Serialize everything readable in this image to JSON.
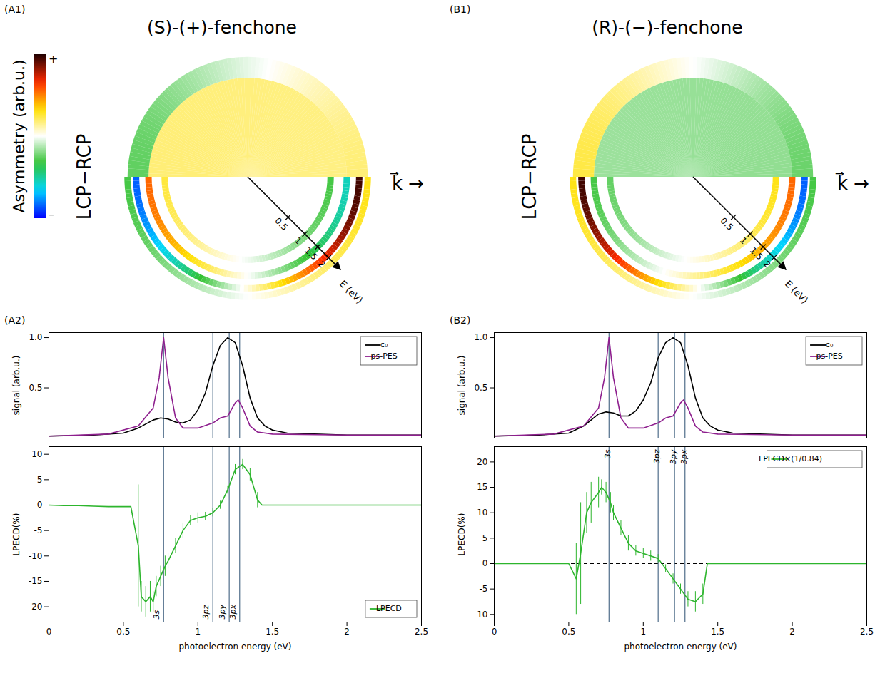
{
  "chart_data": [
    {
      "type": "image",
      "panel": "(A1)",
      "title": "(S)-(+)-fenchone",
      "ylabel": "LCP−RCP",
      "direction_label": "k⃗ →",
      "colorbar": {
        "label": "Asymmetry (arb.u.)",
        "range": [
          -1,
          1
        ],
        "ticks": [
          {
            "value": 1,
            "label": "+"
          },
          {
            "value": -1,
            "label": "–"
          }
        ]
      },
      "energy_axis": {
        "label": "E (eV)",
        "lim": [
          0,
          2.3
        ],
        "ticks": [
          0.5,
          1,
          1.5,
          2
        ]
      },
      "upper_regions": [
        {
          "e": [
            0,
            1.5
          ],
          "asymmetry_left": 0.22,
          "asymmetry_right": 0.2
        },
        {
          "e": [
            1.5,
            2.2
          ],
          "asymmetry_left": -0.32,
          "asymmetry_right": 0.22
        }
      ],
      "rings": [
        {
          "e": 1.05,
          "asymmetry_left": 0.25,
          "asymmetry_right": -0.3
        },
        {
          "e": 1.5,
          "asymmetry_left": 0.55,
          "asymmetry_right": -0.55
        },
        {
          "e": 1.9,
          "asymmetry_left": -0.85,
          "asymmetry_right": 0.95
        },
        {
          "e": 2.2,
          "asymmetry_left": -0.3,
          "asymmetry_right": 0.3
        }
      ]
    },
    {
      "type": "image",
      "panel": "(B1)",
      "title": "(R)-(−)-fenchone",
      "ylabel": "LCP−RCP",
      "direction_label": "k⃗ →",
      "energy_axis": {
        "label": "E (eV)",
        "lim": [
          0,
          2.3
        ],
        "ticks": [
          0.5,
          1,
          1.5,
          2
        ]
      },
      "upper_regions": [
        {
          "e": [
            0,
            1.5
          ],
          "asymmetry_left": -0.2,
          "asymmetry_right": -0.22
        },
        {
          "e": [
            1.5,
            2.2
          ],
          "asymmetry_left": 0.3,
          "asymmetry_right": -0.3
        }
      ],
      "rings": [
        {
          "e": 1.05,
          "asymmetry_left": -0.25,
          "asymmetry_right": 0.3
        },
        {
          "e": 1.5,
          "asymmetry_left": -0.3,
          "asymmetry_right": 0.55
        },
        {
          "e": 1.9,
          "asymmetry_left": 0.95,
          "asymmetry_right": -0.85
        },
        {
          "e": 2.2,
          "asymmetry_left": 0.3,
          "asymmetry_right": -0.3
        }
      ]
    },
    {
      "type": "line",
      "panel": "(A2)",
      "states": {
        "color": "#4f6d8a",
        "lines": [
          {
            "label": "3s",
            "x": 0.77
          },
          {
            "label": "3pz",
            "x": 1.1
          },
          {
            "label": "3py",
            "x": 1.21
          },
          {
            "label": "3px",
            "x": 1.28
          }
        ]
      },
      "subplots": [
        {
          "ylabel": "signal (arb.u.)",
          "xlim": [
            0,
            2.5
          ],
          "ylim": [
            0,
            1.05
          ],
          "yticks": [
            0.5,
            {
              "value": 1,
              "label": "1.0"
            }
          ],
          "tick_labels": "y",
          "legend": "top-right",
          "series": [
            {
              "name": "c₀",
              "color": "#000000",
              "x": [
                0,
                0.3,
                0.5,
                0.6,
                0.7,
                0.75,
                0.8,
                0.85,
                0.9,
                0.95,
                1.0,
                1.05,
                1.1,
                1.15,
                1.2,
                1.25,
                1.3,
                1.35,
                1.4,
                1.45,
                1.5,
                1.6,
                2.0,
                2.5
              ],
              "values": [
                0.02,
                0.03,
                0.05,
                0.1,
                0.18,
                0.2,
                0.19,
                0.16,
                0.15,
                0.18,
                0.28,
                0.45,
                0.72,
                0.92,
                1.0,
                0.95,
                0.72,
                0.4,
                0.2,
                0.12,
                0.08,
                0.05,
                0.03,
                0.03
              ]
            },
            {
              "name": "ps-PES",
              "color": "#8e1f8e",
              "x": [
                0,
                0.4,
                0.6,
                0.7,
                0.74,
                0.77,
                0.8,
                0.85,
                0.9,
                1.0,
                1.1,
                1.15,
                1.2,
                1.25,
                1.27,
                1.3,
                1.35,
                1.4,
                1.5,
                2.0,
                2.5
              ],
              "values": [
                0.02,
                0.04,
                0.12,
                0.3,
                0.6,
                1.0,
                0.6,
                0.2,
                0.1,
                0.1,
                0.15,
                0.2,
                0.22,
                0.35,
                0.38,
                0.3,
                0.12,
                0.06,
                0.04,
                0.03,
                0.03
              ]
            }
          ]
        },
        {
          "ylabel": "LPECD(%)",
          "xlabel": "photoelectron energy (eV)",
          "xlim": [
            0,
            2.5
          ],
          "xticks": [
            0,
            0.5,
            1,
            1.5,
            2,
            2.5
          ],
          "ylim": [
            -23,
            11.5
          ],
          "yticks": [
            -20,
            -15,
            -10,
            -5,
            0,
            5,
            10
          ],
          "legend": "bottom-right",
          "hlines": [
            {
              "value": 0,
              "line_style": "dashed",
              "color": "#000000"
            }
          ],
          "series": [
            {
              "name": "LPECD",
              "color": "#2db52d",
              "x": [
                0,
                0.1,
                0.2,
                0.3,
                0.4,
                0.5,
                0.55,
                0.6,
                0.62,
                0.65,
                0.68,
                0.7,
                0.72,
                0.75,
                0.78,
                0.8,
                0.85,
                0.9,
                0.95,
                1.0,
                1.05,
                1.1,
                1.15,
                1.2,
                1.25,
                1.3,
                1.35,
                1.4,
                1.43,
                1.5,
                2.0,
                2.5
              ],
              "values": [
                0,
                -0.1,
                -0.1,
                -0.2,
                -0.3,
                -0.3,
                -0.3,
                -8,
                -18,
                -19,
                -18,
                -19,
                -16,
                -14,
                -12,
                -11,
                -8,
                -5,
                -3,
                -2.5,
                -2.2,
                -1.5,
                0,
                3,
                7,
                8,
                6,
                1,
                0,
                0,
                0,
                0
              ],
              "errors": [
                0,
                0,
                0,
                0,
                0,
                0,
                0,
                12,
                3,
                3,
                3,
                2,
                2,
                2,
                2,
                1.5,
                1.5,
                1.5,
                1,
                1,
                0.8,
                0.8,
                0.8,
                0.8,
                1,
                1,
                1.2,
                1.5,
                0,
                0,
                0,
                0
              ]
            }
          ]
        }
      ]
    },
    {
      "type": "line",
      "panel": "(B2)",
      "states": {
        "color": "#4f6d8a",
        "lines": [
          {
            "label": "3s",
            "x": 0.77
          },
          {
            "label": "3pz",
            "x": 1.1
          },
          {
            "label": "3py",
            "x": 1.21
          },
          {
            "label": "3px",
            "x": 1.28
          }
        ]
      },
      "subplots": [
        {
          "ylabel": "signal (arb.u.)",
          "xlim": [
            0,
            2.5
          ],
          "ylim": [
            0,
            1.05
          ],
          "yticks": [
            0.5,
            {
              "value": 1,
              "label": "1.0"
            }
          ],
          "tick_labels": "y",
          "legend": "top-right",
          "series": [
            {
              "name": "c₀",
              "color": "#000000",
              "x": [
                0,
                0.3,
                0.5,
                0.6,
                0.7,
                0.75,
                0.8,
                0.85,
                0.9,
                0.95,
                1.0,
                1.05,
                1.1,
                1.15,
                1.2,
                1.25,
                1.3,
                1.35,
                1.4,
                1.45,
                1.5,
                1.6,
                2.0,
                2.5
              ],
              "values": [
                0.02,
                0.03,
                0.05,
                0.12,
                0.24,
                0.26,
                0.25,
                0.22,
                0.22,
                0.27,
                0.38,
                0.55,
                0.8,
                0.95,
                1.0,
                0.95,
                0.72,
                0.4,
                0.2,
                0.12,
                0.08,
                0.05,
                0.03,
                0.03
              ]
            },
            {
              "name": "ps-PES",
              "color": "#8e1f8e",
              "x": [
                0,
                0.4,
                0.6,
                0.7,
                0.74,
                0.77,
                0.8,
                0.85,
                0.9,
                1.0,
                1.1,
                1.15,
                1.2,
                1.25,
                1.27,
                1.3,
                1.35,
                1.4,
                1.5,
                2.0,
                2.5
              ],
              "values": [
                0.02,
                0.04,
                0.12,
                0.3,
                0.6,
                1.0,
                0.6,
                0.2,
                0.1,
                0.1,
                0.15,
                0.2,
                0.22,
                0.35,
                0.38,
                0.3,
                0.12,
                0.06,
                0.04,
                0.03,
                0.03
              ]
            }
          ]
        },
        {
          "ylabel": "LPECD(%)",
          "xlabel": "photoelectron energy (eV)",
          "xlim": [
            0,
            2.5
          ],
          "xticks": [
            0,
            0.5,
            1,
            1.5,
            2,
            2.5
          ],
          "ylim": [
            -11.5,
            23
          ],
          "yticks": [
            -10,
            -5,
            0,
            5,
            10,
            15,
            20
          ],
          "legend": "top-right",
          "hlines": [
            {
              "value": 0,
              "line_style": "dashed",
              "color": "#000000"
            }
          ],
          "series": [
            {
              "name": "LPECD×(1/0.84)",
              "color": "#2db52d",
              "x": [
                0,
                0.1,
                0.2,
                0.3,
                0.4,
                0.5,
                0.55,
                0.58,
                0.62,
                0.65,
                0.7,
                0.72,
                0.75,
                0.78,
                0.8,
                0.85,
                0.9,
                0.95,
                1.0,
                1.05,
                1.1,
                1.15,
                1.2,
                1.25,
                1.3,
                1.35,
                1.4,
                1.43,
                1.5,
                2.0,
                2.5
              ],
              "values": [
                0,
                0,
                0,
                0,
                0,
                0,
                -3,
                2,
                10,
                12,
                14,
                15,
                14,
                12,
                10,
                7,
                4,
                2.5,
                2,
                1.5,
                1,
                -1,
                -3,
                -5,
                -7,
                -7.5,
                -6,
                0,
                0,
                0,
                0
              ],
              "errors": [
                0,
                0,
                0,
                0,
                0,
                0,
                7,
                10,
                4,
                4,
                3,
                1.5,
                2,
                2,
                1.5,
                1.5,
                1.5,
                1,
                1,
                1,
                0.8,
                0.8,
                1,
                1,
                1.5,
                2,
                2,
                0,
                0,
                0,
                0
              ]
            }
          ]
        }
      ]
    }
  ]
}
